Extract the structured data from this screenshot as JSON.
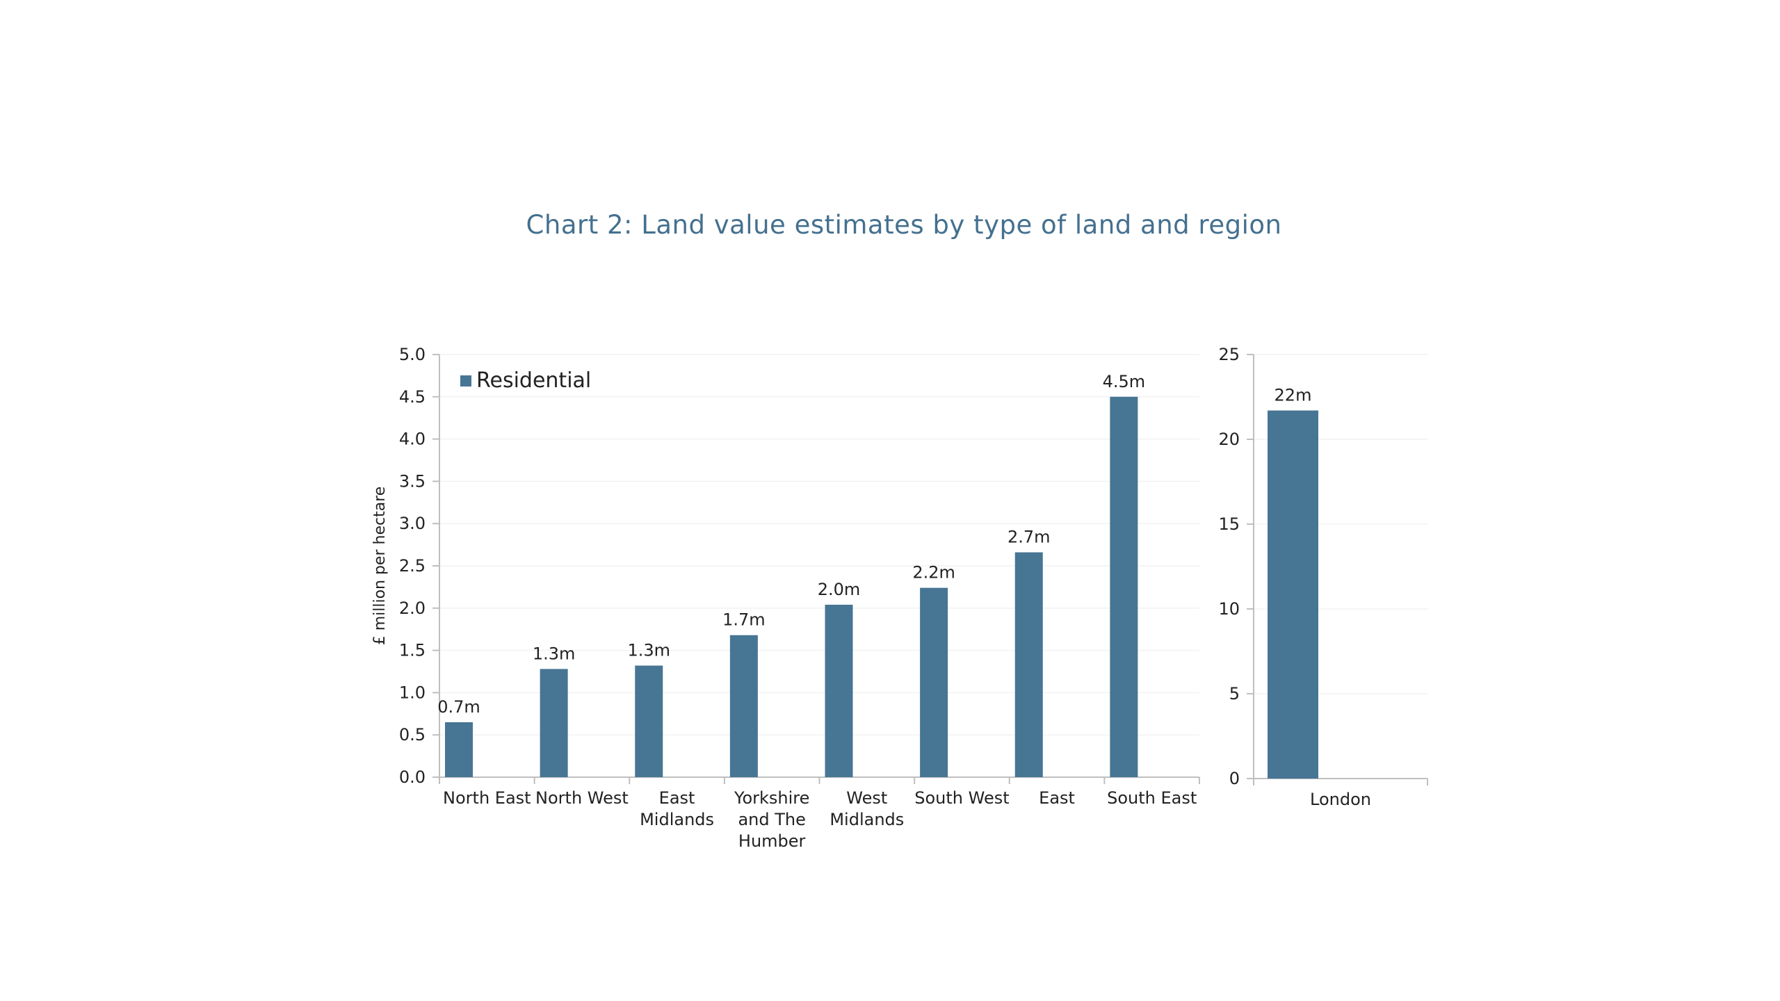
{
  "title": "Chart 2: Land value estimates by type of land and region",
  "colors": {
    "bar": "#477594",
    "title": "#44708f"
  },
  "chart_data": [
    {
      "type": "bar",
      "ylabel": "£ million per hectare",
      "ylim": [
        0,
        5
      ],
      "yticks": [
        "0.0",
        "0.5",
        "1.0",
        "1.5",
        "2.0",
        "2.5",
        "3.0",
        "3.5",
        "4.0",
        "4.5",
        "5.0"
      ],
      "grid": true,
      "legend": {
        "position": "top-left",
        "entries": [
          "Residential"
        ]
      },
      "categories": [
        [
          "North East"
        ],
        [
          "North West"
        ],
        [
          "East",
          "Midlands"
        ],
        [
          "Yorkshire",
          "and The",
          "Humber"
        ],
        [
          "West",
          "Midlands"
        ],
        [
          "South West"
        ],
        [
          "East"
        ],
        [
          "South East"
        ]
      ],
      "series": [
        {
          "name": "Residential",
          "values": [
            0.65,
            1.28,
            1.32,
            1.68,
            2.04,
            2.24,
            2.66,
            4.5
          ],
          "labels": [
            "0.7m",
            "1.3m",
            "1.3m",
            "1.7m",
            "2.0m",
            "2.2m",
            "2.7m",
            "4.5m"
          ]
        }
      ]
    },
    {
      "type": "bar",
      "ylim": [
        0,
        25
      ],
      "yticks": [
        "0",
        "5",
        "10",
        "15",
        "20",
        "25"
      ],
      "grid": true,
      "categories": [
        [
          "London"
        ]
      ],
      "series": [
        {
          "values": [
            21.7
          ],
          "labels": [
            "22m"
          ]
        }
      ]
    }
  ]
}
